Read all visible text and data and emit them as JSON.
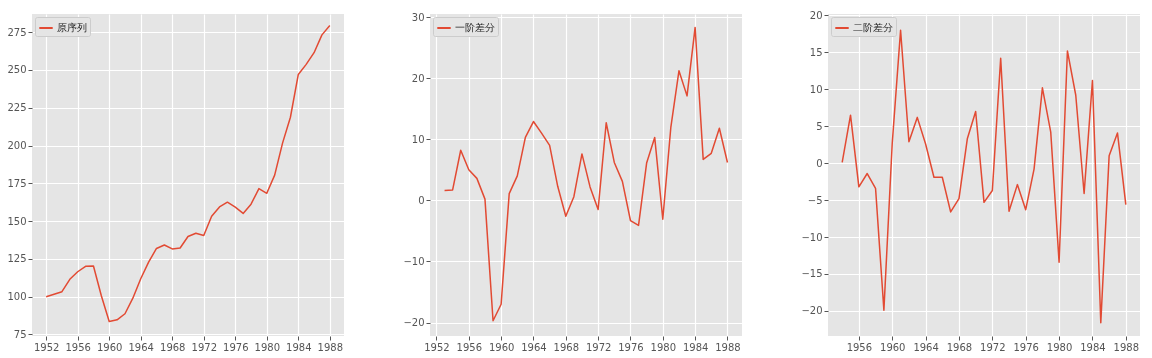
{
  "chart_data": [
    {
      "type": "line",
      "x": [
        1952,
        1953,
        1954,
        1955,
        1956,
        1957,
        1958,
        1959,
        1960,
        1961,
        1962,
        1963,
        1964,
        1965,
        1966,
        1967,
        1968,
        1969,
        1970,
        1971,
        1972,
        1973,
        1974,
        1975,
        1976,
        1977,
        1978,
        1979,
        1980,
        1981,
        1982,
        1983,
        1984,
        1985,
        1986,
        1987,
        1988
      ],
      "series": [
        {
          "name": "原序列",
          "color": "#e24a33",
          "values": [
            100,
            101.6,
            103.3,
            111.5,
            116.5,
            120.1,
            120.3,
            100.6,
            83.6,
            84.7,
            88.7,
            99,
            111.9,
            122.9,
            131.9,
            134.2,
            131.6,
            132.2,
            139.8,
            142,
            140.5,
            153.2,
            159.4,
            162.5,
            159.2,
            155.1,
            161.2,
            171.5,
            168.4,
            180.4,
            201.6,
            218.7,
            247,
            253.7,
            261.4,
            273.2,
            279.4
          ]
        }
      ],
      "xlim": [
        1950.2,
        1989.8
      ],
      "xticks": [
        1952,
        1956,
        1960,
        1964,
        1968,
        1972,
        1976,
        1980,
        1984,
        1988
      ],
      "ylim": [
        74,
        287
      ],
      "yticks": [
        75,
        100,
        125,
        150,
        175,
        200,
        225,
        250,
        275
      ],
      "grid": true,
      "legend": "top left"
    },
    {
      "type": "line",
      "x": [
        1953,
        1954,
        1955,
        1956,
        1957,
        1958,
        1959,
        1960,
        1961,
        1962,
        1963,
        1964,
        1965,
        1966,
        1967,
        1968,
        1969,
        1970,
        1971,
        1972,
        1973,
        1974,
        1975,
        1976,
        1977,
        1978,
        1979,
        1980,
        1981,
        1982,
        1983,
        1984,
        1985,
        1986,
        1987,
        1988
      ],
      "series": [
        {
          "name": "一阶差分",
          "color": "#e24a33",
          "values": [
            1.6,
            1.7,
            8.2,
            5,
            3.6,
            0.2,
            -19.7,
            -17,
            1.1,
            4,
            10.3,
            12.9,
            11,
            9,
            2.3,
            -2.6,
            0.6,
            7.6,
            2.2,
            -1.5,
            12.7,
            6.2,
            3.1,
            -3.3,
            -4.1,
            6.1,
            10.3,
            -3.1,
            12,
            21.2,
            17.1,
            28.3,
            6.7,
            7.7,
            11.8,
            6.2
          ]
        }
      ],
      "xlim": [
        1951.2,
        1989.8
      ],
      "xticks": [
        1952,
        1956,
        1960,
        1964,
        1968,
        1972,
        1976,
        1980,
        1984,
        1988
      ],
      "ylim": [
        -22.2,
        30.5
      ],
      "yticks": [
        {
          "value": -20,
          "label": "−20"
        },
        {
          "value": -10,
          "label": "−10"
        },
        0,
        10,
        20,
        30
      ],
      "grid": true,
      "legend": "top left"
    },
    {
      "type": "line",
      "x": [
        1954,
        1955,
        1956,
        1957,
        1958,
        1959,
        1960,
        1961,
        1962,
        1963,
        1964,
        1965,
        1966,
        1967,
        1968,
        1969,
        1970,
        1971,
        1972,
        1973,
        1974,
        1975,
        1976,
        1977,
        1978,
        1979,
        1980,
        1981,
        1982,
        1983,
        1984,
        1985,
        1986,
        1987,
        1988
      ],
      "series": [
        {
          "name": "二阶差分",
          "color": "#e24a33",
          "values": [
            0.1,
            6.5,
            -3.2,
            -1.4,
            -3.4,
            -19.9,
            2.7,
            18,
            2.9,
            6.2,
            2.6,
            -1.9,
            -1.9,
            -6.6,
            -4.8,
            3.3,
            7,
            -5.3,
            -3.7,
            14.2,
            -6.5,
            -2.9,
            -6.3,
            -0.8,
            10.2,
            4.2,
            -13.4,
            15.2,
            9.2,
            -4.1,
            11.2,
            -21.6,
            1,
            4.1,
            -5.6
          ]
        }
      ],
      "xlim": [
        1952.3,
        1989.7
      ],
      "xticks": [
        1956,
        1960,
        1964,
        1968,
        1972,
        1976,
        1980,
        1984,
        1988
      ],
      "ylim": [
        -23.4,
        20.2
      ],
      "yticks": [
        {
          "value": -20,
          "label": "−20"
        },
        {
          "value": -15,
          "label": "−15"
        },
        {
          "value": -10,
          "label": "−10"
        },
        {
          "value": -5,
          "label": "−5"
        },
        0,
        5,
        10,
        15,
        20
      ],
      "grid": true,
      "legend": "top left"
    }
  ]
}
